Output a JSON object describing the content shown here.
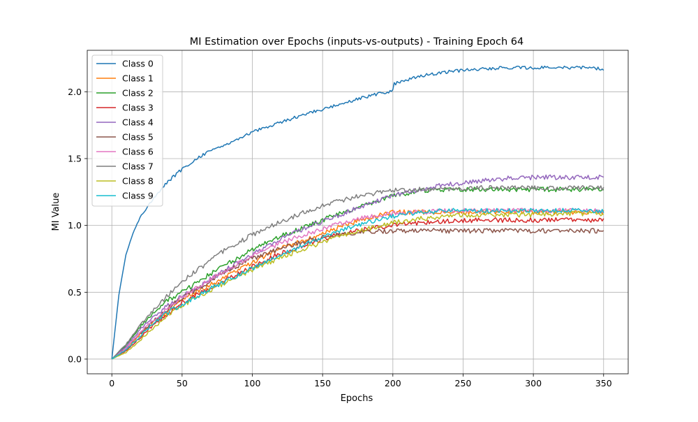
{
  "chart_data": {
    "type": "line",
    "title": "MI Estimation over Epochs (inputs-vs-outputs) - Training Epoch 64",
    "xlabel": "Epochs",
    "ylabel": "MI Value",
    "xlim": [
      -17.5,
      367.5
    ],
    "ylim": [
      -0.11,
      2.31
    ],
    "xticks": [
      0,
      50,
      100,
      150,
      200,
      250,
      300,
      350
    ],
    "yticks": [
      0.0,
      0.5,
      1.0,
      1.5,
      2.0
    ],
    "xtick_labels": [
      "0",
      "50",
      "100",
      "150",
      "200",
      "250",
      "300",
      "350"
    ],
    "ytick_labels": [
      "0.0",
      "0.5",
      "1.0",
      "1.5",
      "2.0"
    ],
    "grid": true,
    "legend_position": "top-left",
    "series": [
      {
        "name": "Class 0",
        "color": "#1f77b4",
        "x": [
          0,
          5,
          10,
          15,
          20,
          30,
          40,
          50,
          60,
          70,
          80,
          90,
          100,
          120,
          140,
          160,
          180,
          200,
          201,
          220,
          240,
          260,
          280,
          300,
          320,
          340,
          350
        ],
        "y": [
          0.0,
          0.48,
          0.78,
          0.94,
          1.06,
          1.21,
          1.33,
          1.42,
          1.5,
          1.56,
          1.6,
          1.65,
          1.7,
          1.77,
          1.84,
          1.9,
          1.96,
          2.01,
          2.06,
          2.12,
          2.15,
          2.17,
          2.18,
          2.18,
          2.18,
          2.18,
          2.17
        ]
      },
      {
        "name": "Class 1",
        "color": "#ff7f0e",
        "x": [
          0,
          10,
          20,
          30,
          40,
          50,
          60,
          80,
          100,
          120,
          140,
          160,
          180,
          200,
          220,
          240,
          260,
          280,
          300,
          320,
          350
        ],
        "y": [
          0.0,
          0.07,
          0.18,
          0.28,
          0.36,
          0.44,
          0.5,
          0.61,
          0.72,
          0.83,
          0.9,
          0.98,
          1.05,
          1.1,
          1.1,
          1.1,
          1.1,
          1.1,
          1.1,
          1.1,
          1.1
        ]
      },
      {
        "name": "Class 2",
        "color": "#2ca02c",
        "x": [
          0,
          10,
          20,
          30,
          40,
          50,
          60,
          80,
          100,
          120,
          140,
          160,
          180,
          200,
          220,
          240,
          260,
          280,
          300,
          320,
          350
        ],
        "y": [
          0.0,
          0.1,
          0.24,
          0.35,
          0.44,
          0.5,
          0.57,
          0.7,
          0.82,
          0.92,
          1.0,
          1.08,
          1.15,
          1.22,
          1.26,
          1.27,
          1.27,
          1.27,
          1.27,
          1.27,
          1.27
        ]
      },
      {
        "name": "Class 3",
        "color": "#d62728",
        "x": [
          0,
          10,
          20,
          30,
          40,
          50,
          60,
          80,
          100,
          120,
          140,
          160,
          180,
          200,
          220,
          240,
          260,
          280,
          300,
          320,
          350
        ],
        "y": [
          0.0,
          0.06,
          0.16,
          0.26,
          0.34,
          0.42,
          0.48,
          0.59,
          0.69,
          0.79,
          0.86,
          0.93,
          0.97,
          1.0,
          1.02,
          1.03,
          1.04,
          1.04,
          1.04,
          1.04,
          1.04
        ]
      },
      {
        "name": "Class 4",
        "color": "#9467bd",
        "x": [
          0,
          10,
          20,
          30,
          40,
          50,
          60,
          80,
          100,
          120,
          140,
          160,
          180,
          200,
          220,
          240,
          260,
          280,
          300,
          320,
          350
        ],
        "y": [
          0.0,
          0.09,
          0.22,
          0.32,
          0.4,
          0.47,
          0.53,
          0.66,
          0.78,
          0.9,
          0.99,
          1.07,
          1.15,
          1.22,
          1.27,
          1.31,
          1.33,
          1.35,
          1.36,
          1.36,
          1.36
        ]
      },
      {
        "name": "Class 5",
        "color": "#8c564b",
        "x": [
          0,
          10,
          20,
          30,
          40,
          50,
          60,
          80,
          100,
          120,
          140,
          160,
          180,
          200,
          220,
          240,
          260,
          280,
          300,
          320,
          350
        ],
        "y": [
          0.0,
          0.08,
          0.19,
          0.29,
          0.38,
          0.46,
          0.52,
          0.65,
          0.75,
          0.83,
          0.89,
          0.93,
          0.95,
          0.96,
          0.96,
          0.96,
          0.96,
          0.96,
          0.96,
          0.96,
          0.96
        ]
      },
      {
        "name": "Class 6",
        "color": "#e377c2",
        "x": [
          0,
          10,
          20,
          30,
          40,
          50,
          60,
          80,
          100,
          120,
          140,
          160,
          180,
          200,
          220,
          240,
          260,
          280,
          300,
          320,
          350
        ],
        "y": [
          0.0,
          0.08,
          0.2,
          0.3,
          0.38,
          0.46,
          0.53,
          0.66,
          0.77,
          0.87,
          0.94,
          1.01,
          1.06,
          1.09,
          1.1,
          1.11,
          1.11,
          1.11,
          1.11,
          1.11,
          1.11
        ]
      },
      {
        "name": "Class 7",
        "color": "#7f7f7f",
        "x": [
          0,
          10,
          20,
          30,
          40,
          50,
          60,
          80,
          100,
          120,
          140,
          160,
          180,
          200,
          220,
          240,
          260,
          280,
          300,
          320,
          350
        ],
        "y": [
          0.0,
          0.11,
          0.25,
          0.37,
          0.48,
          0.58,
          0.66,
          0.81,
          0.93,
          1.03,
          1.11,
          1.18,
          1.23,
          1.26,
          1.27,
          1.27,
          1.28,
          1.28,
          1.28,
          1.28,
          1.28
        ]
      },
      {
        "name": "Class 8",
        "color": "#bcbd22",
        "x": [
          0,
          10,
          20,
          30,
          40,
          50,
          60,
          80,
          100,
          120,
          140,
          160,
          180,
          200,
          220,
          240,
          260,
          280,
          300,
          320,
          350
        ],
        "y": [
          0.0,
          0.05,
          0.14,
          0.24,
          0.33,
          0.4,
          0.46,
          0.57,
          0.67,
          0.76,
          0.84,
          0.91,
          0.97,
          1.02,
          1.05,
          1.07,
          1.08,
          1.08,
          1.08,
          1.09,
          1.09
        ]
      },
      {
        "name": "Class 9",
        "color": "#17becf",
        "x": [
          0,
          10,
          20,
          30,
          40,
          50,
          60,
          80,
          100,
          120,
          140,
          160,
          180,
          200,
          220,
          240,
          260,
          280,
          300,
          320,
          350
        ],
        "y": [
          0.0,
          0.07,
          0.17,
          0.27,
          0.35,
          0.41,
          0.47,
          0.58,
          0.68,
          0.78,
          0.87,
          0.95,
          1.02,
          1.07,
          1.1,
          1.11,
          1.11,
          1.11,
          1.11,
          1.11,
          1.11
        ]
      }
    ]
  }
}
